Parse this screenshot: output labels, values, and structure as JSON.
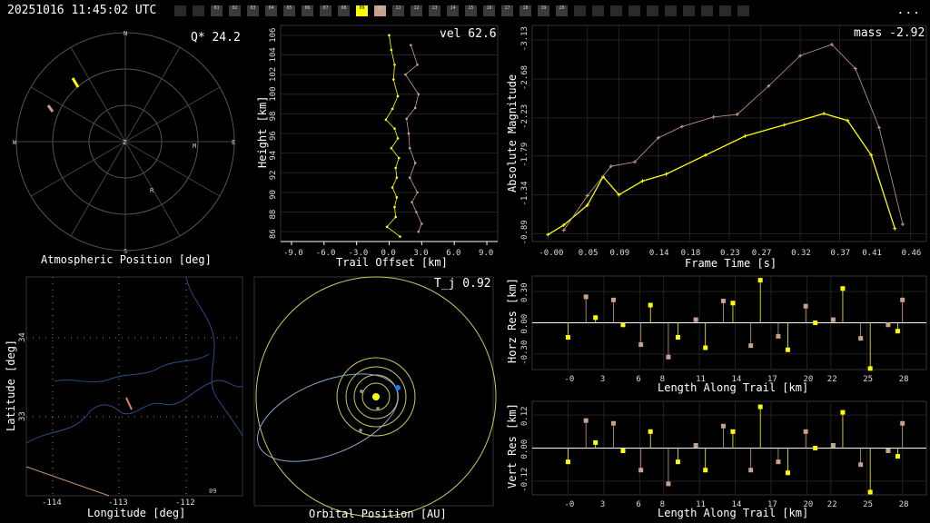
{
  "header": {
    "timestamp": "20251016 11:45:02 UTC",
    "menu": "..."
  },
  "cameras": {
    "slots": [
      "",
      "",
      "01",
      "02",
      "03",
      "04",
      "05",
      "06",
      "07",
      "08",
      "09",
      "10",
      "11",
      "12",
      "13",
      "14",
      "15",
      "16",
      "17",
      "18",
      "19",
      "20",
      "",
      "",
      "",
      "",
      "",
      "",
      "",
      "",
      "",
      ""
    ],
    "active_yellow": "09",
    "active_tan": "10"
  },
  "colors": {
    "primary": "#ffff00",
    "secondary": "#c8a08c",
    "ellipse": "#88aacc",
    "orbit": "#c8c864"
  },
  "sky": {
    "title": "Atmospheric Position [deg]",
    "q_value": "Q* 24.2",
    "directions": {
      "n": "N",
      "s": "S",
      "e": "E",
      "w": "W",
      "z": "Z"
    },
    "markers": [
      "M",
      "R"
    ]
  },
  "trail": {
    "title": "Trail Offset [km]",
    "ylabel": "Height [km]",
    "value": "vel 62.6",
    "xticks": [
      "-9.0",
      "-6.0",
      "-3.0",
      "0.0",
      "3.0",
      "6.0",
      "9.0"
    ],
    "yticks": [
      "106",
      "104",
      "102",
      "100",
      "98",
      "96",
      "94",
      "92",
      "90",
      "88",
      "86"
    ]
  },
  "mag": {
    "title": "Frame Time [s]",
    "ylabel": "Absolute Magnitude",
    "value": "mass -2.92",
    "xticks": [
      "-0.00",
      "0.05",
      "0.09",
      "0.14",
      "0.18",
      "0.23",
      "0.27",
      "0.32",
      "0.37",
      "0.41",
      "0.46"
    ],
    "yticks": [
      "-3.13",
      "-2.68",
      "-2.23",
      "-1.79",
      "-1.34",
      "-0.89"
    ]
  },
  "map": {
    "title": "Longitude [deg]",
    "ylabel": "Latitude [deg]",
    "xticks": [
      "-114",
      "-113",
      "-112"
    ],
    "yticks": [
      "34",
      "33"
    ],
    "corner": "09"
  },
  "orbit": {
    "title": "Orbital Position [AU]",
    "value": "T_j 0.92"
  },
  "horz": {
    "title": "Length Along Trail [km]",
    "ylabel": "Horz Res [km]",
    "xticks": [
      "-0",
      "3",
      "6",
      "8",
      "11",
      "14",
      "17",
      "20",
      "22",
      "25",
      "28"
    ],
    "yticks": [
      "0.30",
      "0.00",
      "-0.30"
    ]
  },
  "vert": {
    "title": "Length Along Trail [km]",
    "ylabel": "Vert Res [km]",
    "xticks": [
      "-0",
      "3",
      "6",
      "8",
      "11",
      "14",
      "17",
      "20",
      "22",
      "25",
      "28"
    ],
    "yticks": [
      "0.12",
      "0.00",
      "-0.12"
    ]
  },
  "chart_data": [
    {
      "type": "line",
      "title": "",
      "xlabel": "Frame Time [s]",
      "ylabel": "Absolute Magnitude",
      "xlim": [
        -0.02,
        0.48
      ],
      "ylim": [
        -0.8,
        -3.3
      ],
      "series": [
        {
          "x": [
            0.0,
            0.02,
            0.05,
            0.07,
            0.09,
            0.12,
            0.15,
            0.2,
            0.25,
            0.3,
            0.35,
            0.38,
            0.41,
            0.44
          ],
          "y": [
            -0.88,
            -0.99,
            -1.22,
            -1.55,
            -1.34,
            -1.5,
            -1.58,
            -1.8,
            -2.02,
            -2.15,
            -2.28,
            -2.2,
            -1.8,
            -0.95
          ]
        },
        {
          "x": [
            0.02,
            0.05,
            0.08,
            0.11,
            0.14,
            0.17,
            0.21,
            0.24,
            0.28,
            0.32,
            0.36,
            0.39,
            0.42,
            0.45
          ],
          "y": [
            -0.93,
            -1.33,
            -1.67,
            -1.72,
            -2.0,
            -2.13,
            -2.24,
            -2.27,
            -2.6,
            -2.95,
            -3.08,
            -2.8,
            -2.12,
            -1.0
          ]
        }
      ]
    },
    {
      "type": "line",
      "xlabel": "Trail Offset [km]",
      "ylabel": "Height [km]",
      "xlim": [
        -10,
        10
      ],
      "ylim": [
        85,
        107
      ],
      "series": [
        {
          "x": [
            0.0,
            0.2,
            0.5,
            0.4,
            0.8,
            0.3,
            -0.3,
            0.5,
            0.8,
            0.2,
            0.9,
            0.6,
            0.7,
            0.3,
            0.7,
            0.5,
            0.6,
            -0.2,
            1.0
          ],
          "y": [
            106,
            104.5,
            103,
            101.5,
            99.8,
            98.5,
            97.4,
            96.5,
            95.5,
            94.5,
            93.5,
            92.5,
            91.5,
            90.5,
            89.5,
            88.5,
            87.5,
            86.5,
            85.5
          ]
        },
        {
          "x": [
            2.0,
            2.6,
            1.5,
            2.7,
            2.4,
            1.6,
            1.8,
            1.9,
            2.4,
            1.9,
            2.6,
            2.1,
            2.5,
            3.0,
            2.7
          ],
          "y": [
            105,
            103,
            102,
            100,
            98.6,
            97.5,
            96,
            94.5,
            93,
            91.5,
            90,
            89,
            88,
            86.8,
            86
          ]
        }
      ]
    },
    {
      "type": "bar",
      "title": "",
      "xlabel": "Length Along Trail [km]",
      "ylabel": "Horz Res [km]",
      "ylim": [
        -0.45,
        0.45
      ],
      "series": [
        {
          "x": [
            0.0,
            2.3,
            4.6,
            6.9,
            9.2,
            11.5,
            13.8,
            16.1,
            18.4,
            20.7,
            23.0,
            25.3,
            27.6
          ],
          "values": [
            -0.14,
            0.05,
            -0.02,
            0.17,
            -0.14,
            -0.24,
            0.19,
            0.41,
            -0.26,
            0.0,
            0.33,
            -0.44,
            -0.08
          ]
        },
        {
          "x": [
            1.5,
            3.8,
            6.1,
            8.4,
            10.7,
            13.0,
            15.3,
            17.6,
            19.9,
            22.2,
            24.5,
            26.8,
            28.0
          ],
          "values": [
            0.25,
            0.22,
            -0.21,
            -0.33,
            0.03,
            0.21,
            -0.22,
            -0.13,
            0.16,
            0.03,
            -0.15,
            -0.02,
            0.22
          ]
        }
      ]
    },
    {
      "type": "bar",
      "title": "",
      "xlabel": "Length Along Trail [km]",
      "ylabel": "Vert Res [km]",
      "ylim": [
        -0.17,
        0.17
      ],
      "series": [
        {
          "x": [
            0.0,
            2.3,
            4.6,
            6.9,
            9.2,
            11.5,
            13.8,
            16.1,
            18.4,
            20.7,
            23.0,
            25.3,
            27.6
          ],
          "values": [
            -0.05,
            0.02,
            -0.01,
            0.06,
            -0.05,
            -0.08,
            0.06,
            0.15,
            -0.09,
            0.0,
            0.13,
            -0.16,
            -0.03
          ]
        },
        {
          "x": [
            1.5,
            3.8,
            6.1,
            8.4,
            10.7,
            13.0,
            15.3,
            17.6,
            19.9,
            22.2,
            24.5,
            26.8,
            28.0
          ],
          "values": [
            0.1,
            0.09,
            -0.08,
            -0.13,
            0.01,
            0.08,
            -0.08,
            -0.05,
            0.06,
            0.01,
            -0.06,
            -0.01,
            0.09
          ]
        }
      ]
    }
  ]
}
